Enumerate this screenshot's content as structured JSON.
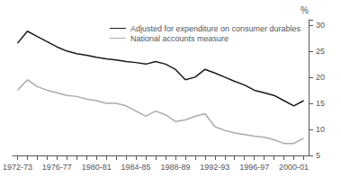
{
  "chart_data": {
    "type": "line",
    "ylabel": "%",
    "categories": [
      "1972-73",
      null,
      null,
      null,
      "1976-77",
      null,
      null,
      null,
      "1980-81",
      null,
      null,
      null,
      "1984-85",
      null,
      null,
      null,
      "1988-89",
      null,
      null,
      null,
      "1992-93",
      null,
      null,
      null,
      "1996-97",
      null,
      null,
      null,
      "2000-01",
      null
    ],
    "series": [
      {
        "name": "Adjusted for expenditure on consumer durables",
        "color": "#1a1a1a",
        "values": [
          26.5,
          28.8,
          27.8,
          26.8,
          25.8,
          25.0,
          24.5,
          24.2,
          23.8,
          23.5,
          23.3,
          23.0,
          22.8,
          22.5,
          23.0,
          22.5,
          21.5,
          19.5,
          20.0,
          21.5,
          20.8,
          20.0,
          19.2,
          18.5,
          17.5,
          17.0,
          16.5,
          15.5,
          14.5,
          15.5
        ]
      },
      {
        "name": "National accounts measure",
        "color": "#aaaaaa",
        "values": [
          17.5,
          19.5,
          18.2,
          17.5,
          17.0,
          16.5,
          16.3,
          15.8,
          15.5,
          15.0,
          15.0,
          14.5,
          13.5,
          12.5,
          13.5,
          12.8,
          11.5,
          11.8,
          12.5,
          13.0,
          10.5,
          9.8,
          9.3,
          9.0,
          8.7,
          8.5,
          8.0,
          7.3,
          7.3,
          8.3
        ]
      }
    ],
    "ylim": [
      5,
      31
    ],
    "yticks": [
      5,
      10,
      15,
      20,
      25,
      30
    ],
    "grid": false,
    "legend": "upper right"
  }
}
